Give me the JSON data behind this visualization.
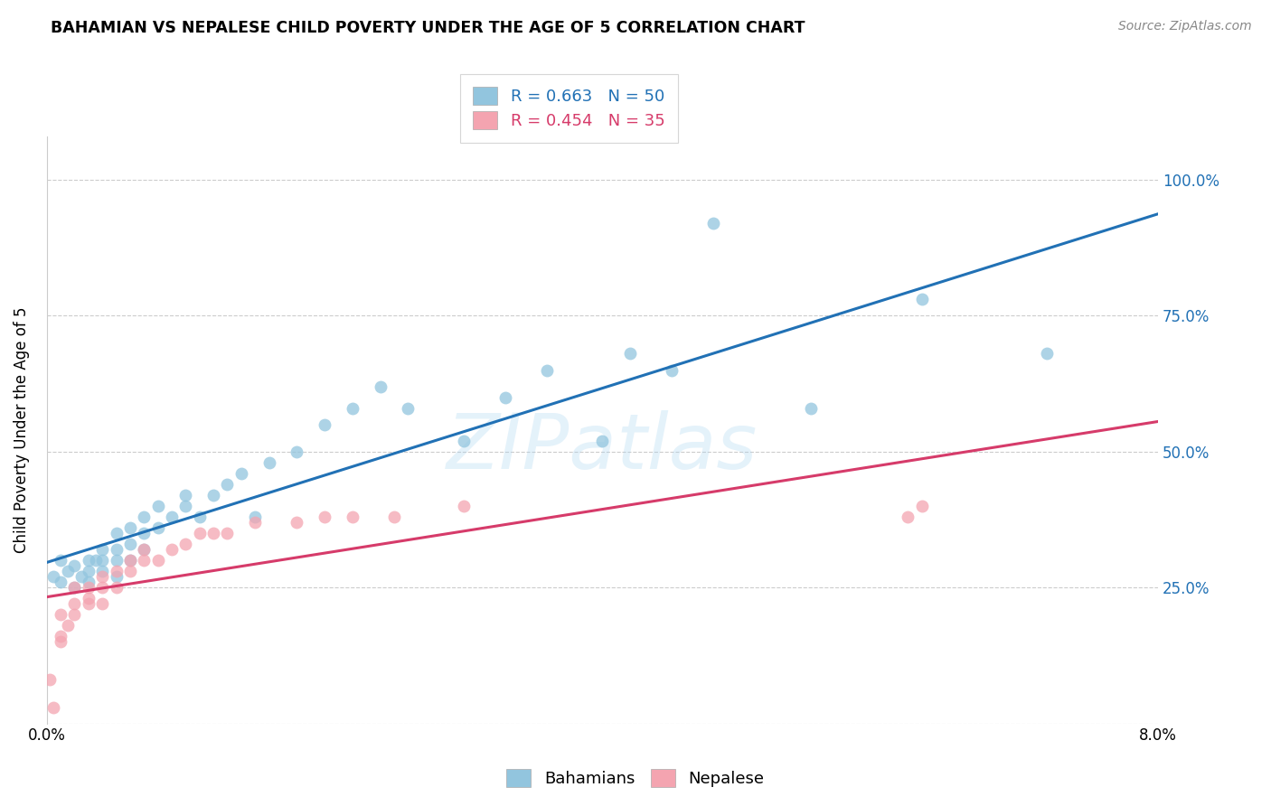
{
  "title": "BAHAMIAN VS NEPALESE CHILD POVERTY UNDER THE AGE OF 5 CORRELATION CHART",
  "source": "Source: ZipAtlas.com",
  "ylabel": "Child Poverty Under the Age of 5",
  "ytick_labels": [
    "",
    "25.0%",
    "50.0%",
    "75.0%",
    "100.0%"
  ],
  "ytick_values": [
    0.0,
    0.25,
    0.5,
    0.75,
    1.0
  ],
  "xlim": [
    0.0,
    0.08
  ],
  "ylim": [
    0.0,
    1.08
  ],
  "legend_r1": "R = 0.663   N = 50",
  "legend_r2": "R = 0.454   N = 35",
  "blue_color": "#92c5de",
  "pink_color": "#f4a4b0",
  "line_blue": "#2171b5",
  "line_pink": "#d63b6a",
  "watermark": "ZIPatlas",
  "bahamian_x": [
    0.0005,
    0.001,
    0.001,
    0.0015,
    0.002,
    0.002,
    0.0025,
    0.003,
    0.003,
    0.003,
    0.0035,
    0.004,
    0.004,
    0.004,
    0.005,
    0.005,
    0.005,
    0.005,
    0.006,
    0.006,
    0.006,
    0.007,
    0.007,
    0.007,
    0.008,
    0.008,
    0.009,
    0.01,
    0.01,
    0.011,
    0.012,
    0.013,
    0.014,
    0.015,
    0.016,
    0.018,
    0.02,
    0.022,
    0.024,
    0.026,
    0.03,
    0.033,
    0.036,
    0.04,
    0.042,
    0.045,
    0.048,
    0.055,
    0.063,
    0.072
  ],
  "bahamian_y": [
    0.27,
    0.26,
    0.3,
    0.28,
    0.25,
    0.29,
    0.27,
    0.26,
    0.28,
    0.3,
    0.3,
    0.28,
    0.32,
    0.3,
    0.3,
    0.27,
    0.32,
    0.35,
    0.3,
    0.33,
    0.36,
    0.32,
    0.35,
    0.38,
    0.36,
    0.4,
    0.38,
    0.4,
    0.42,
    0.38,
    0.42,
    0.44,
    0.46,
    0.38,
    0.48,
    0.5,
    0.55,
    0.58,
    0.62,
    0.58,
    0.52,
    0.6,
    0.65,
    0.52,
    0.68,
    0.65,
    0.92,
    0.58,
    0.78,
    0.68
  ],
  "nepalese_x": [
    0.0002,
    0.0005,
    0.001,
    0.001,
    0.001,
    0.0015,
    0.002,
    0.002,
    0.002,
    0.003,
    0.003,
    0.003,
    0.004,
    0.004,
    0.004,
    0.005,
    0.005,
    0.006,
    0.006,
    0.007,
    0.007,
    0.008,
    0.009,
    0.01,
    0.011,
    0.012,
    0.013,
    0.015,
    0.018,
    0.02,
    0.022,
    0.025,
    0.03,
    0.062,
    0.063
  ],
  "nepalese_y": [
    0.08,
    0.03,
    0.15,
    0.16,
    0.2,
    0.18,
    0.2,
    0.22,
    0.25,
    0.22,
    0.23,
    0.25,
    0.22,
    0.25,
    0.27,
    0.25,
    0.28,
    0.28,
    0.3,
    0.3,
    0.32,
    0.3,
    0.32,
    0.33,
    0.35,
    0.35,
    0.35,
    0.37,
    0.37,
    0.38,
    0.38,
    0.38,
    0.4,
    0.38,
    0.4
  ]
}
